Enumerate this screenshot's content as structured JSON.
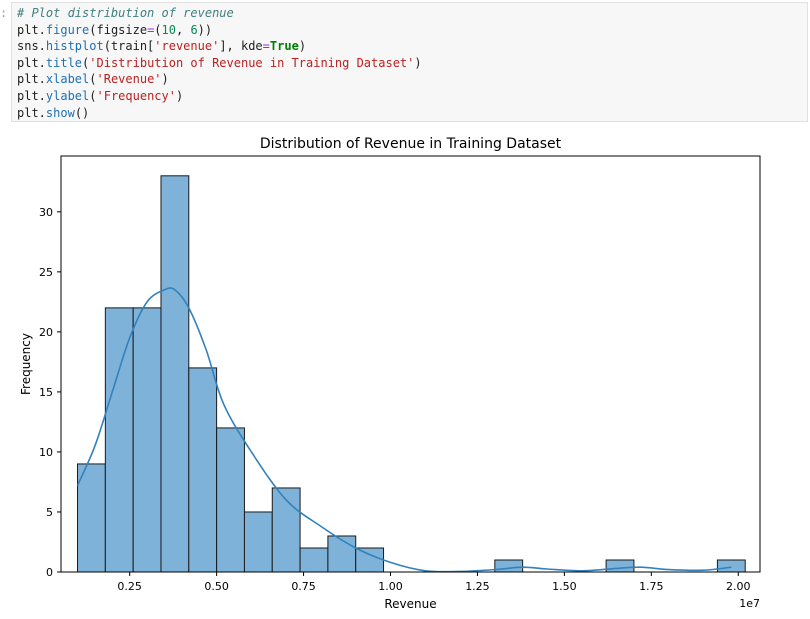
{
  "cell": {
    "prompt": ":",
    "code_lines": [
      [
        {
          "t": "# Plot distribution of revenue",
          "c": "com"
        }
      ],
      [
        {
          "t": "plt.",
          "c": ""
        },
        {
          "t": "figure",
          "c": "fn"
        },
        {
          "t": "(figsize",
          "c": ""
        },
        {
          "t": "=",
          "c": "op"
        },
        {
          "t": "(",
          "c": ""
        },
        {
          "t": "10",
          "c": "num"
        },
        {
          "t": ", ",
          "c": ""
        },
        {
          "t": "6",
          "c": "num"
        },
        {
          "t": "))",
          "c": ""
        }
      ],
      [
        {
          "t": "sns.",
          "c": ""
        },
        {
          "t": "histplot",
          "c": "fn"
        },
        {
          "t": "(train[",
          "c": ""
        },
        {
          "t": "'revenue'",
          "c": "str"
        },
        {
          "t": "], kde",
          "c": ""
        },
        {
          "t": "=",
          "c": "op"
        },
        {
          "t": "True",
          "c": "kw"
        },
        {
          "t": ")",
          "c": ""
        }
      ],
      [
        {
          "t": "plt.",
          "c": ""
        },
        {
          "t": "title",
          "c": "fn"
        },
        {
          "t": "(",
          "c": ""
        },
        {
          "t": "'Distribution of Revenue in Training Dataset'",
          "c": "str"
        },
        {
          "t": ")",
          "c": ""
        }
      ],
      [
        {
          "t": "plt.",
          "c": ""
        },
        {
          "t": "xlabel",
          "c": "fn"
        },
        {
          "t": "(",
          "c": ""
        },
        {
          "t": "'Revenue'",
          "c": "str"
        },
        {
          "t": ")",
          "c": ""
        }
      ],
      [
        {
          "t": "plt.",
          "c": ""
        },
        {
          "t": "ylabel",
          "c": "fn"
        },
        {
          "t": "(",
          "c": ""
        },
        {
          "t": "'Frequency'",
          "c": "str"
        },
        {
          "t": ")",
          "c": ""
        }
      ],
      [
        {
          "t": "plt.",
          "c": ""
        },
        {
          "t": "show",
          "c": "fn"
        },
        {
          "t": "()",
          "c": ""
        }
      ]
    ]
  },
  "chart_data": {
    "type": "bar",
    "title": "Distribution of Revenue in Training Dataset",
    "xlabel": "Revenue",
    "ylabel": "Frequency",
    "x_offset_label": "1e7",
    "xlim": [
      0.0525,
      2.0625
    ],
    "ylim": [
      0,
      34.65
    ],
    "x_ticks": [
      0.25,
      0.5,
      0.75,
      1.0,
      1.25,
      1.5,
      1.75,
      2.0
    ],
    "x_tick_labels": [
      "0.25",
      "0.50",
      "0.75",
      "1.00",
      "1.25",
      "1.50",
      "1.75",
      "2.00"
    ],
    "y_ticks": [
      0,
      5,
      10,
      15,
      20,
      25,
      30
    ],
    "y_tick_labels": [
      "0",
      "5",
      "10",
      "15",
      "20",
      "25",
      "30"
    ],
    "bin_start": 0.1,
    "bin_width": 0.08,
    "counts": [
      9,
      22,
      22,
      33,
      17,
      12,
      5,
      7,
      2,
      3,
      2,
      0,
      0,
      0,
      0,
      1,
      0,
      0,
      0,
      1,
      0,
      0,
      0,
      1
    ],
    "bar_color": "#7fb2d8",
    "bar_edge": "#1a1a1a",
    "kde_color": "#3182bd",
    "kde": {
      "x": [
        0.1,
        0.15,
        0.2,
        0.25,
        0.3,
        0.35,
        0.38,
        0.42,
        0.47,
        0.52,
        0.6,
        0.7,
        0.8,
        0.9,
        1.0,
        1.1,
        1.2,
        1.3,
        1.38,
        1.45,
        1.55,
        1.65,
        1.72,
        1.8,
        1.9,
        1.98
      ],
      "y": [
        7.2,
        10.5,
        15.0,
        19.5,
        22.5,
        23.5,
        23.5,
        22.0,
        18.5,
        14.0,
        10.0,
        6.0,
        3.8,
        2.0,
        0.8,
        0.1,
        0.05,
        0.2,
        0.4,
        0.25,
        0.1,
        0.3,
        0.4,
        0.2,
        0.15,
        0.4
      ]
    },
    "grid": false,
    "legend": "none"
  }
}
